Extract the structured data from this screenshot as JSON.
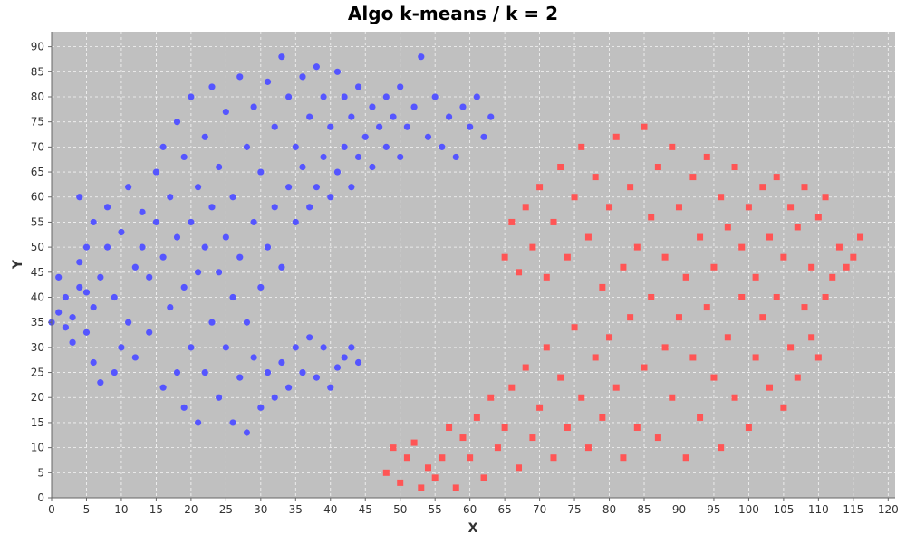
{
  "chart_data": {
    "type": "scatter",
    "title": "Algo k-means / k = 2",
    "xlabel": "X",
    "ylabel": "Y",
    "xlim": [
      0,
      121
    ],
    "ylim": [
      0,
      93
    ],
    "x_ticks": [
      0,
      5,
      10,
      15,
      20,
      25,
      30,
      35,
      40,
      45,
      50,
      55,
      60,
      65,
      70,
      75,
      80,
      85,
      90,
      95,
      100,
      105,
      110,
      115,
      120
    ],
    "y_ticks": [
      0,
      5,
      10,
      15,
      20,
      25,
      30,
      35,
      40,
      45,
      50,
      55,
      60,
      65,
      70,
      75,
      80,
      85,
      90
    ],
    "grid": true,
    "plot_background": "#c0c0c0",
    "series": [
      {
        "marker": "circle",
        "color": "#5555ff",
        "points": [
          [
            0,
            35
          ],
          [
            1,
            44
          ],
          [
            1,
            37
          ],
          [
            2,
            40
          ],
          [
            2,
            34
          ],
          [
            3,
            31
          ],
          [
            3,
            36
          ],
          [
            4,
            42
          ],
          [
            4,
            47
          ],
          [
            4,
            60
          ],
          [
            5,
            50
          ],
          [
            5,
            41
          ],
          [
            5,
            33
          ],
          [
            6,
            27
          ],
          [
            6,
            38
          ],
          [
            6,
            55
          ],
          [
            7,
            23
          ],
          [
            7,
            44
          ],
          [
            8,
            50
          ],
          [
            8,
            58
          ],
          [
            9,
            25
          ],
          [
            9,
            40
          ],
          [
            10,
            30
          ],
          [
            10,
            53
          ],
          [
            11,
            35
          ],
          [
            11,
            62
          ],
          [
            12,
            46
          ],
          [
            12,
            28
          ],
          [
            13,
            50
          ],
          [
            13,
            57
          ],
          [
            14,
            44
          ],
          [
            14,
            33
          ],
          [
            15,
            55
          ],
          [
            15,
            65
          ],
          [
            16,
            22
          ],
          [
            16,
            48
          ],
          [
            16,
            70
          ],
          [
            17,
            38
          ],
          [
            17,
            60
          ],
          [
            18,
            25
          ],
          [
            18,
            52
          ],
          [
            18,
            75
          ],
          [
            19,
            18
          ],
          [
            19,
            42
          ],
          [
            19,
            68
          ],
          [
            20,
            30
          ],
          [
            20,
            55
          ],
          [
            20,
            80
          ],
          [
            21,
            15
          ],
          [
            21,
            45
          ],
          [
            21,
            62
          ],
          [
            22,
            25
          ],
          [
            22,
            50
          ],
          [
            22,
            72
          ],
          [
            23,
            35
          ],
          [
            23,
            58
          ],
          [
            23,
            82
          ],
          [
            24,
            20
          ],
          [
            24,
            45
          ],
          [
            24,
            66
          ],
          [
            25,
            30
          ],
          [
            25,
            52
          ],
          [
            25,
            77
          ],
          [
            26,
            15
          ],
          [
            26,
            40
          ],
          [
            26,
            60
          ],
          [
            27,
            24
          ],
          [
            27,
            48
          ],
          [
            27,
            84
          ],
          [
            28,
            13
          ],
          [
            28,
            35
          ],
          [
            28,
            70
          ],
          [
            29,
            28
          ],
          [
            29,
            55
          ],
          [
            29,
            78
          ],
          [
            30,
            18
          ],
          [
            30,
            42
          ],
          [
            30,
            65
          ],
          [
            31,
            25
          ],
          [
            31,
            50
          ],
          [
            31,
            83
          ],
          [
            32,
            20
          ],
          [
            32,
            58
          ],
          [
            32,
            74
          ],
          [
            33,
            27
          ],
          [
            33,
            46
          ],
          [
            33,
            88
          ],
          [
            34,
            22
          ],
          [
            34,
            62
          ],
          [
            34,
            80
          ],
          [
            35,
            30
          ],
          [
            35,
            55
          ],
          [
            35,
            70
          ],
          [
            36,
            25
          ],
          [
            36,
            66
          ],
          [
            36,
            84
          ],
          [
            37,
            32
          ],
          [
            37,
            58
          ],
          [
            37,
            76
          ],
          [
            38,
            24
          ],
          [
            38,
            62
          ],
          [
            38,
            86
          ],
          [
            39,
            30
          ],
          [
            39,
            68
          ],
          [
            39,
            80
          ],
          [
            40,
            22
          ],
          [
            40,
            60
          ],
          [
            40,
            74
          ],
          [
            41,
            26
          ],
          [
            41,
            65
          ],
          [
            41,
            85
          ],
          [
            42,
            28
          ],
          [
            42,
            70
          ],
          [
            42,
            80
          ],
          [
            43,
            30
          ],
          [
            43,
            62
          ],
          [
            43,
            76
          ],
          [
            44,
            27
          ],
          [
            44,
            68
          ],
          [
            44,
            82
          ],
          [
            45,
            72
          ],
          [
            46,
            66
          ],
          [
            46,
            78
          ],
          [
            47,
            74
          ],
          [
            48,
            70
          ],
          [
            48,
            80
          ],
          [
            49,
            76
          ],
          [
            50,
            68
          ],
          [
            50,
            82
          ],
          [
            51,
            74
          ],
          [
            52,
            78
          ],
          [
            53,
            88
          ],
          [
            54,
            72
          ],
          [
            55,
            80
          ],
          [
            56,
            70
          ],
          [
            57,
            76
          ],
          [
            58,
            68
          ],
          [
            59,
            78
          ],
          [
            60,
            74
          ],
          [
            61,
            80
          ],
          [
            62,
            72
          ],
          [
            63,
            76
          ]
        ]
      },
      {
        "marker": "square",
        "color": "#ff5555",
        "points": [
          [
            48,
            5
          ],
          [
            49,
            10
          ],
          [
            50,
            3
          ],
          [
            51,
            8
          ],
          [
            52,
            11
          ],
          [
            53,
            2
          ],
          [
            54,
            6
          ],
          [
            55,
            4
          ],
          [
            56,
            8
          ],
          [
            57,
            14
          ],
          [
            58,
            2
          ],
          [
            59,
            12
          ],
          [
            60,
            8
          ],
          [
            61,
            16
          ],
          [
            62,
            4
          ],
          [
            63,
            20
          ],
          [
            64,
            10
          ],
          [
            65,
            14
          ],
          [
            65,
            48
          ],
          [
            66,
            22
          ],
          [
            66,
            55
          ],
          [
            67,
            6
          ],
          [
            67,
            45
          ],
          [
            68,
            26
          ],
          [
            68,
            58
          ],
          [
            69,
            12
          ],
          [
            69,
            50
          ],
          [
            70,
            18
          ],
          [
            70,
            62
          ],
          [
            71,
            30
          ],
          [
            71,
            44
          ],
          [
            72,
            8
          ],
          [
            72,
            55
          ],
          [
            73,
            24
          ],
          [
            73,
            66
          ],
          [
            74,
            14
          ],
          [
            74,
            48
          ],
          [
            75,
            34
          ],
          [
            75,
            60
          ],
          [
            76,
            20
          ],
          [
            76,
            70
          ],
          [
            77,
            10
          ],
          [
            77,
            52
          ],
          [
            78,
            28
          ],
          [
            78,
            64
          ],
          [
            79,
            16
          ],
          [
            79,
            42
          ],
          [
            80,
            32
          ],
          [
            80,
            58
          ],
          [
            81,
            22
          ],
          [
            81,
            72
          ],
          [
            82,
            8
          ],
          [
            82,
            46
          ],
          [
            83,
            36
          ],
          [
            83,
            62
          ],
          [
            84,
            14
          ],
          [
            84,
            50
          ],
          [
            85,
            26
          ],
          [
            85,
            74
          ],
          [
            86,
            40
          ],
          [
            86,
            56
          ],
          [
            87,
            12
          ],
          [
            87,
            66
          ],
          [
            88,
            30
          ],
          [
            88,
            48
          ],
          [
            89,
            20
          ],
          [
            89,
            70
          ],
          [
            90,
            36
          ],
          [
            90,
            58
          ],
          [
            91,
            8
          ],
          [
            91,
            44
          ],
          [
            92,
            28
          ],
          [
            92,
            64
          ],
          [
            93,
            16
          ],
          [
            93,
            52
          ],
          [
            94,
            38
          ],
          [
            94,
            68
          ],
          [
            95,
            24
          ],
          [
            95,
            46
          ],
          [
            96,
            10
          ],
          [
            96,
            60
          ],
          [
            97,
            32
          ],
          [
            97,
            54
          ],
          [
            98,
            20
          ],
          [
            98,
            66
          ],
          [
            99,
            40
          ],
          [
            99,
            50
          ],
          [
            100,
            14
          ],
          [
            100,
            58
          ],
          [
            101,
            28
          ],
          [
            101,
            44
          ],
          [
            102,
            36
          ],
          [
            102,
            62
          ],
          [
            103,
            22
          ],
          [
            103,
            52
          ],
          [
            104,
            40
          ],
          [
            104,
            64
          ],
          [
            105,
            18
          ],
          [
            105,
            48
          ],
          [
            106,
            30
          ],
          [
            106,
            58
          ],
          [
            107,
            24
          ],
          [
            107,
            54
          ],
          [
            108,
            38
          ],
          [
            108,
            62
          ],
          [
            109,
            32
          ],
          [
            109,
            46
          ],
          [
            110,
            28
          ],
          [
            110,
            56
          ],
          [
            111,
            40
          ],
          [
            111,
            60
          ],
          [
            112,
            44
          ],
          [
            113,
            50
          ],
          [
            114,
            46
          ],
          [
            115,
            48
          ],
          [
            116,
            52
          ]
        ]
      }
    ]
  }
}
